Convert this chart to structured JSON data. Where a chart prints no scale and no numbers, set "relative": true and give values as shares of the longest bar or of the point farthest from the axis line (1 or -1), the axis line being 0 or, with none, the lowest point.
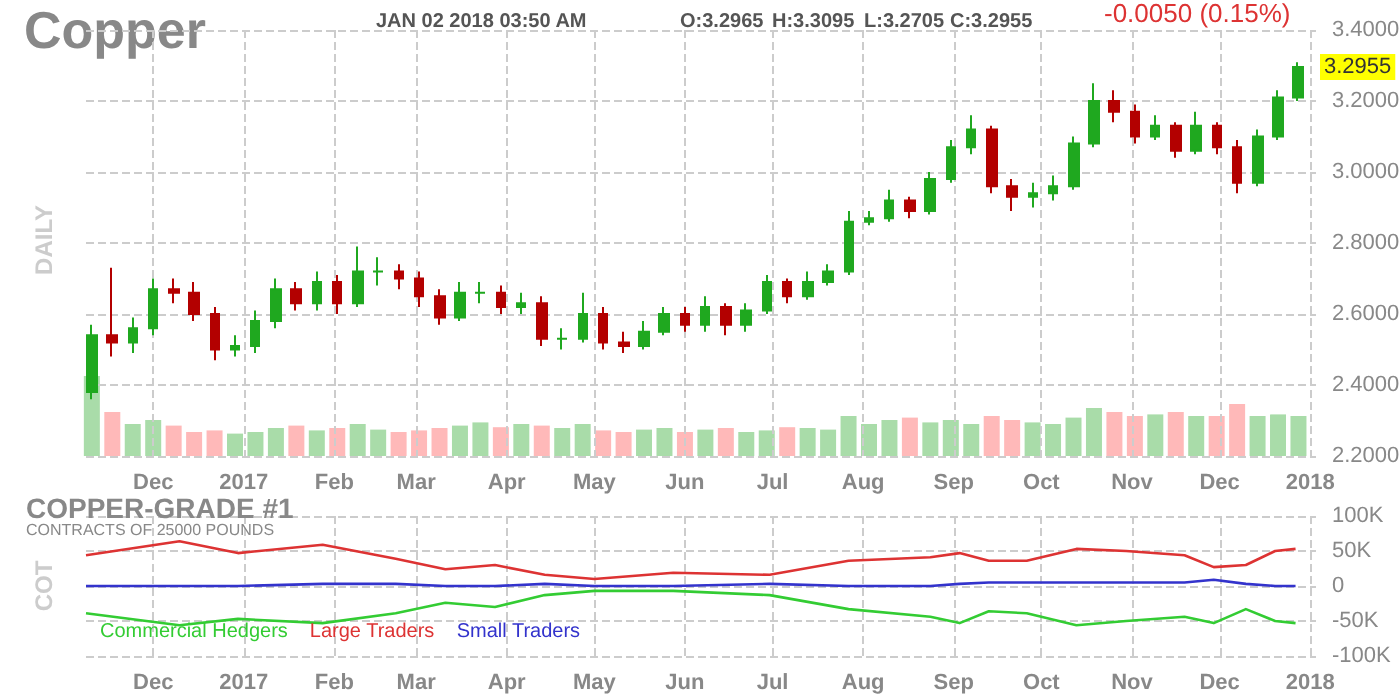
{
  "chart_data": [
    {
      "type": "candlestick",
      "title": "Copper",
      "ylabel": "DAILY",
      "annotations": [
        "JAN 02 2018 03:50 AM",
        "O:3.2965",
        "H:3.3095",
        "L:3.2705",
        "C:3.2955",
        "-0.0050 (0.15%)",
        "3.2955"
      ],
      "x": [
        "2016-11-10",
        "2016-11-17",
        "2016-11-24",
        "2016-12-01",
        "2016-12-08",
        "2016-12-15",
        "2016-12-22",
        "2016-12-29",
        "2017-01-05",
        "2017-01-12",
        "2017-01-19",
        "2017-01-26",
        "2017-02-02",
        "2017-02-09",
        "2017-02-16",
        "2017-02-23",
        "2017-03-02",
        "2017-03-09",
        "2017-03-16",
        "2017-03-23",
        "2017-03-30",
        "2017-04-06",
        "2017-04-13",
        "2017-04-20",
        "2017-04-27",
        "2017-05-04",
        "2017-05-11",
        "2017-05-18",
        "2017-05-25",
        "2017-06-01",
        "2017-06-08",
        "2017-06-15",
        "2017-06-22",
        "2017-06-29",
        "2017-07-06",
        "2017-07-13",
        "2017-07-20",
        "2017-07-27",
        "2017-08-03",
        "2017-08-10",
        "2017-08-17",
        "2017-08-24",
        "2017-08-31",
        "2017-09-07",
        "2017-09-14",
        "2017-09-21",
        "2017-09-28",
        "2017-10-05",
        "2017-10-12",
        "2017-10-19",
        "2017-10-26",
        "2017-11-02",
        "2017-11-09",
        "2017-11-16",
        "2017-11-23",
        "2017-11-30",
        "2017-12-07",
        "2017-12-14",
        "2017-12-21",
        "2017-12-28"
      ],
      "ohlc": [
        [
          2.38,
          2.57,
          2.36,
          2.54
        ],
        [
          2.54,
          2.73,
          2.48,
          2.52
        ],
        [
          2.52,
          2.59,
          2.49,
          2.56
        ],
        [
          2.56,
          2.7,
          2.54,
          2.67
        ],
        [
          2.67,
          2.7,
          2.63,
          2.66
        ],
        [
          2.66,
          2.69,
          2.58,
          2.6
        ],
        [
          2.6,
          2.62,
          2.47,
          2.5
        ],
        [
          2.5,
          2.54,
          2.48,
          2.51
        ],
        [
          2.51,
          2.61,
          2.49,
          2.58
        ],
        [
          2.58,
          2.7,
          2.56,
          2.67
        ],
        [
          2.67,
          2.69,
          2.61,
          2.63
        ],
        [
          2.63,
          2.72,
          2.61,
          2.69
        ],
        [
          2.69,
          2.71,
          2.6,
          2.63
        ],
        [
          2.63,
          2.79,
          2.62,
          2.72
        ],
        [
          2.72,
          2.76,
          2.68,
          2.72
        ],
        [
          2.72,
          2.74,
          2.67,
          2.7
        ],
        [
          2.7,
          2.72,
          2.62,
          2.65
        ],
        [
          2.65,
          2.67,
          2.57,
          2.59
        ],
        [
          2.59,
          2.69,
          2.58,
          2.66
        ],
        [
          2.66,
          2.69,
          2.63,
          2.66
        ],
        [
          2.66,
          2.68,
          2.6,
          2.62
        ],
        [
          2.62,
          2.66,
          2.6,
          2.63
        ],
        [
          2.63,
          2.65,
          2.51,
          2.53
        ],
        [
          2.53,
          2.56,
          2.5,
          2.53
        ],
        [
          2.53,
          2.66,
          2.52,
          2.6
        ],
        [
          2.6,
          2.62,
          2.5,
          2.52
        ],
        [
          2.52,
          2.55,
          2.49,
          2.51
        ],
        [
          2.51,
          2.58,
          2.5,
          2.55
        ],
        [
          2.55,
          2.62,
          2.54,
          2.6
        ],
        [
          2.6,
          2.62,
          2.55,
          2.57
        ],
        [
          2.57,
          2.65,
          2.55,
          2.62
        ],
        [
          2.62,
          2.63,
          2.54,
          2.57
        ],
        [
          2.57,
          2.63,
          2.55,
          2.61
        ],
        [
          2.61,
          2.71,
          2.6,
          2.69
        ],
        [
          2.69,
          2.7,
          2.63,
          2.65
        ],
        [
          2.65,
          2.72,
          2.64,
          2.69
        ],
        [
          2.69,
          2.74,
          2.68,
          2.72
        ],
        [
          2.72,
          2.89,
          2.71,
          2.86
        ],
        [
          2.86,
          2.89,
          2.85,
          2.87
        ],
        [
          2.87,
          2.95,
          2.86,
          2.92
        ],
        [
          2.92,
          2.93,
          2.87,
          2.89
        ],
        [
          2.89,
          3.0,
          2.88,
          2.98
        ],
        [
          2.98,
          3.09,
          2.97,
          3.07
        ],
        [
          3.07,
          3.16,
          3.05,
          3.12
        ],
        [
          3.12,
          3.13,
          2.94,
          2.96
        ],
        [
          2.96,
          2.98,
          2.89,
          2.93
        ],
        [
          2.93,
          2.97,
          2.9,
          2.94
        ],
        [
          2.94,
          2.99,
          2.92,
          2.96
        ],
        [
          2.96,
          3.1,
          2.95,
          3.08
        ],
        [
          3.08,
          3.25,
          3.07,
          3.2
        ],
        [
          3.2,
          3.23,
          3.14,
          3.17
        ],
        [
          3.17,
          3.19,
          3.08,
          3.1
        ],
        [
          3.1,
          3.16,
          3.09,
          3.13
        ],
        [
          3.13,
          3.14,
          3.04,
          3.06
        ],
        [
          3.06,
          3.17,
          3.05,
          3.13
        ],
        [
          3.13,
          3.14,
          3.05,
          3.07
        ],
        [
          3.07,
          3.09,
          2.94,
          2.97
        ],
        [
          2.97,
          3.12,
          2.96,
          3.1
        ],
        [
          3.1,
          3.23,
          3.09,
          3.21
        ],
        [
          3.21,
          3.3095,
          3.2,
          3.2955
        ]
      ],
      "colors": [
        "#1fa81f",
        "#b30000",
        "#1fa81f",
        "#1fa81f",
        "#b30000",
        "#b30000",
        "#b30000",
        "#1fa81f",
        "#1fa81f",
        "#1fa81f",
        "#b30000",
        "#1fa81f",
        "#b30000",
        "#1fa81f",
        "#1fa81f",
        "#b30000",
        "#b30000",
        "#b30000",
        "#1fa81f",
        "#1fa81f",
        "#b30000",
        "#1fa81f",
        "#b30000",
        "#1fa81f",
        "#1fa81f",
        "#b30000",
        "#b30000",
        "#1fa81f",
        "#1fa81f",
        "#b30000",
        "#1fa81f",
        "#b30000",
        "#1fa81f",
        "#1fa81f",
        "#b30000",
        "#1fa81f",
        "#1fa81f",
        "#1fa81f",
        "#1fa81f",
        "#1fa81f",
        "#b30000",
        "#1fa81f",
        "#1fa81f",
        "#1fa81f",
        "#b30000",
        "#b30000",
        "#1fa81f",
        "#1fa81f",
        "#1fa81f",
        "#1fa81f",
        "#b30000",
        "#b30000",
        "#1fa81f",
        "#b30000",
        "#1fa81f",
        "#b30000",
        "#b30000",
        "#1fa81f",
        "#1fa81f",
        "#1fa81f"
      ],
      "xlim": [
        "2016-11-08",
        "2018-01-03"
      ],
      "xticks": [
        {
          "value": "2016-12-01",
          "label": "Dec"
        },
        {
          "value": "2017-01-01",
          "label": "2017"
        },
        {
          "value": "2017-02-01",
          "label": "Feb"
        },
        {
          "value": "2017-03-01",
          "label": "Mar"
        },
        {
          "value": "2017-04-01",
          "label": "Apr"
        },
        {
          "value": "2017-05-01",
          "label": "May"
        },
        {
          "value": "2017-06-01",
          "label": "Jun"
        },
        {
          "value": "2017-07-01",
          "label": "Jul"
        },
        {
          "value": "2017-08-01",
          "label": "Aug"
        },
        {
          "value": "2017-09-01",
          "label": "Sep"
        },
        {
          "value": "2017-10-01",
          "label": "Oct"
        },
        {
          "value": "2017-11-01",
          "label": "Nov"
        },
        {
          "value": "2017-12-01",
          "label": "Dec"
        },
        {
          "value": "2018-01-01",
          "label": "2018"
        }
      ],
      "ylim": [
        2.2,
        3.4
      ],
      "yticks": [
        {
          "value": 2.2,
          "label": "2.2000"
        },
        {
          "value": 2.4,
          "label": "2.4000"
        },
        {
          "value": 2.6,
          "label": "2.6000"
        },
        {
          "value": 2.8,
          "label": "2.8000"
        },
        {
          "value": 3.0,
          "label": "3.0000"
        },
        {
          "value": 3.2,
          "label": "3.2000"
        },
        {
          "value": 3.4,
          "label": "3.4000"
        }
      ],
      "grid": true
    },
    {
      "type": "bar",
      "relative": true,
      "x": [
        "2016-11-10",
        "2016-11-17",
        "2016-11-24",
        "2016-12-01",
        "2016-12-08",
        "2016-12-15",
        "2016-12-22",
        "2016-12-29",
        "2017-01-05",
        "2017-01-12",
        "2017-01-19",
        "2017-01-26",
        "2017-02-02",
        "2017-02-09",
        "2017-02-16",
        "2017-02-23",
        "2017-03-02",
        "2017-03-09",
        "2017-03-16",
        "2017-03-23",
        "2017-03-30",
        "2017-04-06",
        "2017-04-13",
        "2017-04-20",
        "2017-04-27",
        "2017-05-04",
        "2017-05-11",
        "2017-05-18",
        "2017-05-25",
        "2017-06-01",
        "2017-06-08",
        "2017-06-15",
        "2017-06-22",
        "2017-06-29",
        "2017-07-06",
        "2017-07-13",
        "2017-07-20",
        "2017-07-27",
        "2017-08-03",
        "2017-08-10",
        "2017-08-17",
        "2017-08-24",
        "2017-08-31",
        "2017-09-07",
        "2017-09-14",
        "2017-09-21",
        "2017-09-28",
        "2017-10-05",
        "2017-10-12",
        "2017-10-19",
        "2017-10-26",
        "2017-11-02",
        "2017-11-09",
        "2017-11-16",
        "2017-11-23",
        "2017-11-30",
        "2017-12-07",
        "2017-12-14",
        "2017-12-21",
        "2017-12-28"
      ],
      "values": [
        1,
        0.55,
        0.4,
        0.45,
        0.38,
        0.3,
        0.32,
        0.28,
        0.3,
        0.35,
        0.38,
        0.32,
        0.35,
        0.4,
        0.33,
        0.3,
        0.32,
        0.35,
        0.38,
        0.42,
        0.36,
        0.4,
        0.38,
        0.35,
        0.4,
        0.32,
        0.3,
        0.33,
        0.35,
        0.3,
        0.33,
        0.35,
        0.3,
        0.32,
        0.36,
        0.35,
        0.33,
        0.5,
        0.4,
        0.45,
        0.48,
        0.42,
        0.45,
        0.4,
        0.5,
        0.45,
        0.42,
        0.4,
        0.48,
        0.6,
        0.55,
        0.5,
        0.52,
        0.55,
        0.5,
        0.5,
        0.65,
        0.5,
        0.52,
        0.5
      ],
      "colors": [
        "#a9dca9",
        "#ffb9b9",
        "#a9dca9",
        "#a9dca9",
        "#ffb9b9",
        "#ffb9b9",
        "#ffb9b9",
        "#a9dca9",
        "#a9dca9",
        "#a9dca9",
        "#ffb9b9",
        "#a9dca9",
        "#ffb9b9",
        "#a9dca9",
        "#a9dca9",
        "#ffb9b9",
        "#ffb9b9",
        "#ffb9b9",
        "#a9dca9",
        "#a9dca9",
        "#ffb9b9",
        "#a9dca9",
        "#ffb9b9",
        "#a9dca9",
        "#a9dca9",
        "#ffb9b9",
        "#ffb9b9",
        "#a9dca9",
        "#a9dca9",
        "#ffb9b9",
        "#a9dca9",
        "#ffb9b9",
        "#a9dca9",
        "#a9dca9",
        "#ffb9b9",
        "#a9dca9",
        "#a9dca9",
        "#a9dca9",
        "#a9dca9",
        "#a9dca9",
        "#ffb9b9",
        "#a9dca9",
        "#a9dca9",
        "#a9dca9",
        "#ffb9b9",
        "#ffb9b9",
        "#a9dca9",
        "#a9dca9",
        "#a9dca9",
        "#a9dca9",
        "#ffb9b9",
        "#ffb9b9",
        "#a9dca9",
        "#ffb9b9",
        "#a9dca9",
        "#ffb9b9",
        "#ffb9b9",
        "#a9dca9",
        "#a9dca9",
        "#a9dca9"
      ],
      "xlim": [
        "2016-11-08",
        "2018-01-03"
      ]
    },
    {
      "type": "line",
      "title": "COPPER-GRADE #1",
      "subtitle": "CONTRACTS OF 25000 POUNDS",
      "ylabel": "COT",
      "legend": "bottom left",
      "marker": "none",
      "grid": true,
      "x": [
        "2016-11-08",
        "2016-12-10",
        "2016-12-30",
        "2017-01-28",
        "2017-02-22",
        "2017-03-11",
        "2017-03-28",
        "2017-04-14",
        "2017-05-01",
        "2017-05-28",
        "2017-06-30",
        "2017-07-27",
        "2017-08-24",
        "2017-09-03",
        "2017-09-13",
        "2017-09-26",
        "2017-10-13",
        "2017-10-30",
        "2017-11-19",
        "2017-11-29",
        "2017-12-10",
        "2017-12-20",
        "2017-12-27"
      ],
      "series": [
        {
          "name": "Commercial Hedgers",
          "color": "#33cc33",
          "values": [
            -39000,
            -56000,
            -47000,
            -53000,
            -39000,
            -24000,
            -30000,
            -13000,
            -7000,
            -7000,
            -13000,
            -33000,
            -44000,
            -53000,
            -36000,
            -39000,
            -56000,
            -50000,
            -44000,
            -53000,
            -33000,
            -50000,
            -53000
          ]
        },
        {
          "name": "Large Traders",
          "color": "#dd3333",
          "values": [
            44000,
            64000,
            47000,
            59000,
            39000,
            24000,
            30000,
            16000,
            10000,
            19000,
            16000,
            36000,
            41000,
            47000,
            36000,
            36000,
            53000,
            50000,
            44000,
            27000,
            30000,
            50000,
            53000
          ]
        },
        {
          "name": "Small Traders",
          "color": "#3333cc",
          "values": [
            0,
            0,
            0,
            3000,
            3000,
            0,
            0,
            3000,
            0,
            0,
            3000,
            0,
            0,
            3000,
            5000,
            5000,
            5000,
            5000,
            5000,
            9000,
            3000,
            0,
            0
          ]
        }
      ],
      "xlim": [
        "2016-11-08",
        "2018-01-03"
      ],
      "xticks": [
        {
          "value": "2016-12-01",
          "label": "Dec"
        },
        {
          "value": "2017-01-01",
          "label": "2017"
        },
        {
          "value": "2017-02-01",
          "label": "Feb"
        },
        {
          "value": "2017-03-01",
          "label": "Mar"
        },
        {
          "value": "2017-04-01",
          "label": "Apr"
        },
        {
          "value": "2017-05-01",
          "label": "May"
        },
        {
          "value": "2017-06-01",
          "label": "Jun"
        },
        {
          "value": "2017-07-01",
          "label": "Jul"
        },
        {
          "value": "2017-08-01",
          "label": "Aug"
        },
        {
          "value": "2017-09-01",
          "label": "Sep"
        },
        {
          "value": "2017-10-01",
          "label": "Oct"
        },
        {
          "value": "2017-11-01",
          "label": "Nov"
        },
        {
          "value": "2017-12-01",
          "label": "Dec"
        },
        {
          "value": "2018-01-01",
          "label": "2018"
        }
      ],
      "ylim": [
        -100000,
        100000
      ],
      "yticks": [
        {
          "value": -100000,
          "label": "-100K"
        },
        {
          "value": -50000,
          "label": "-50K"
        },
        0,
        {
          "value": 50000,
          "label": "50K"
        },
        {
          "value": 100000,
          "label": "100K"
        }
      ]
    }
  ]
}
